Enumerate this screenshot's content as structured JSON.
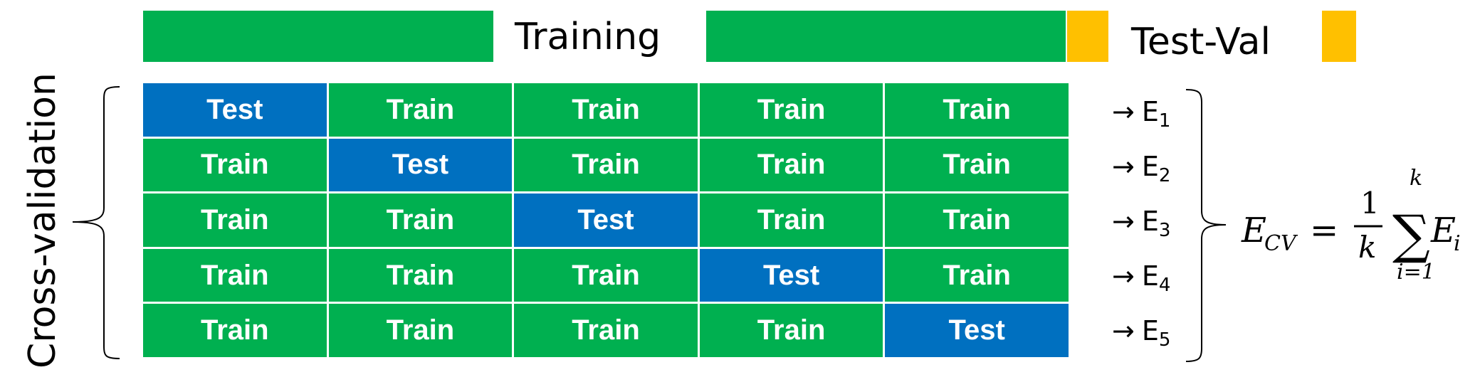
{
  "top": {
    "training_label": "Training",
    "testval_label": "Test-Val"
  },
  "side_label": "Cross-validation",
  "grid_rows": [
    [
      "Test",
      "Train",
      "Train",
      "Train",
      "Train"
    ],
    [
      "Train",
      "Test",
      "Train",
      "Train",
      "Train"
    ],
    [
      "Train",
      "Train",
      "Test",
      "Train",
      "Train"
    ],
    [
      "Train",
      "Train",
      "Train",
      "Test",
      "Train"
    ],
    [
      "Train",
      "Train",
      "Train",
      "Train",
      "Test"
    ]
  ],
  "errors": [
    {
      "arrow": "→",
      "base": "E",
      "sub": "1"
    },
    {
      "arrow": "→",
      "base": "E",
      "sub": "2"
    },
    {
      "arrow": "→",
      "base": "E",
      "sub": "3"
    },
    {
      "arrow": "→",
      "base": "E",
      "sub": "4"
    },
    {
      "arrow": "→",
      "base": "E",
      "sub": "5"
    }
  ],
  "formula": {
    "lhs": "E",
    "lhs_sub": "CV",
    "equals": "=",
    "frac_num": "1",
    "frac_den": "k",
    "sigma": "∑",
    "upper": "k",
    "lower": "i=1",
    "term": "E",
    "term_sub": "i"
  },
  "colors": {
    "train": "#00B050",
    "test": "#0070C0",
    "testval": "#FFC000"
  }
}
